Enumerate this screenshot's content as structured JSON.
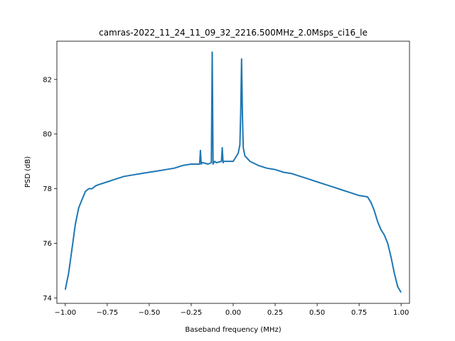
{
  "chart_data": {
    "type": "line",
    "title": "camras-2022_11_24_11_09_32_2216.500MHz_2.0Msps_ci16_le",
    "xlabel": "Baseband frequency (MHz)",
    "ylabel": "PSD (dB)",
    "xlim": [
      -1.05,
      1.05
    ],
    "ylim": [
      73.8,
      83.4
    ],
    "x_ticks": [
      -1.0,
      -0.75,
      -0.5,
      -0.25,
      0.0,
      0.25,
      0.5,
      0.75,
      1.0
    ],
    "x_tick_labels": [
      "−1.00",
      "−0.75",
      "−0.50",
      "−0.25",
      "0.00",
      "0.25",
      "0.50",
      "0.75",
      "1.00"
    ],
    "y_ticks": [
      74,
      76,
      78,
      80,
      82
    ],
    "y_tick_labels": [
      "74",
      "76",
      "78",
      "80",
      "82"
    ],
    "grid": false,
    "series": [
      {
        "color": "#1f77b4",
        "x": [
          -1.0,
          -0.98,
          -0.96,
          -0.94,
          -0.92,
          -0.9,
          -0.88,
          -0.86,
          -0.84,
          -0.82,
          -0.8,
          -0.75,
          -0.7,
          -0.65,
          -0.6,
          -0.55,
          -0.5,
          -0.45,
          -0.4,
          -0.35,
          -0.3,
          -0.25,
          -0.2,
          -0.195,
          -0.19,
          -0.185,
          -0.18,
          -0.15,
          -0.13,
          -0.125,
          -0.12,
          -0.115,
          -0.11,
          -0.1,
          -0.07,
          -0.065,
          -0.06,
          -0.055,
          -0.05,
          0.0,
          0.03,
          0.04,
          0.045,
          0.05,
          0.055,
          0.06,
          0.07,
          0.1,
          0.15,
          0.2,
          0.25,
          0.3,
          0.35,
          0.4,
          0.45,
          0.5,
          0.55,
          0.6,
          0.65,
          0.7,
          0.75,
          0.8,
          0.82,
          0.84,
          0.86,
          0.88,
          0.9,
          0.92,
          0.94,
          0.96,
          0.98,
          1.0
        ],
        "y": [
          74.3,
          74.9,
          75.8,
          76.7,
          77.3,
          77.6,
          77.9,
          78.0,
          78.0,
          78.1,
          78.15,
          78.25,
          78.35,
          78.45,
          78.5,
          78.55,
          78.6,
          78.65,
          78.7,
          78.75,
          78.85,
          78.9,
          78.9,
          79.4,
          78.9,
          78.95,
          78.95,
          78.9,
          78.95,
          83.0,
          78.9,
          78.95,
          79.0,
          78.95,
          79.0,
          79.5,
          78.95,
          79.0,
          79.0,
          79.0,
          79.3,
          79.6,
          80.8,
          82.75,
          80.7,
          79.5,
          79.2,
          79.0,
          78.85,
          78.75,
          78.7,
          78.6,
          78.55,
          78.45,
          78.35,
          78.25,
          78.15,
          78.05,
          77.95,
          77.85,
          77.75,
          77.7,
          77.5,
          77.2,
          76.8,
          76.5,
          76.3,
          76.0,
          75.5,
          74.9,
          74.4,
          74.2
        ]
      }
    ]
  }
}
